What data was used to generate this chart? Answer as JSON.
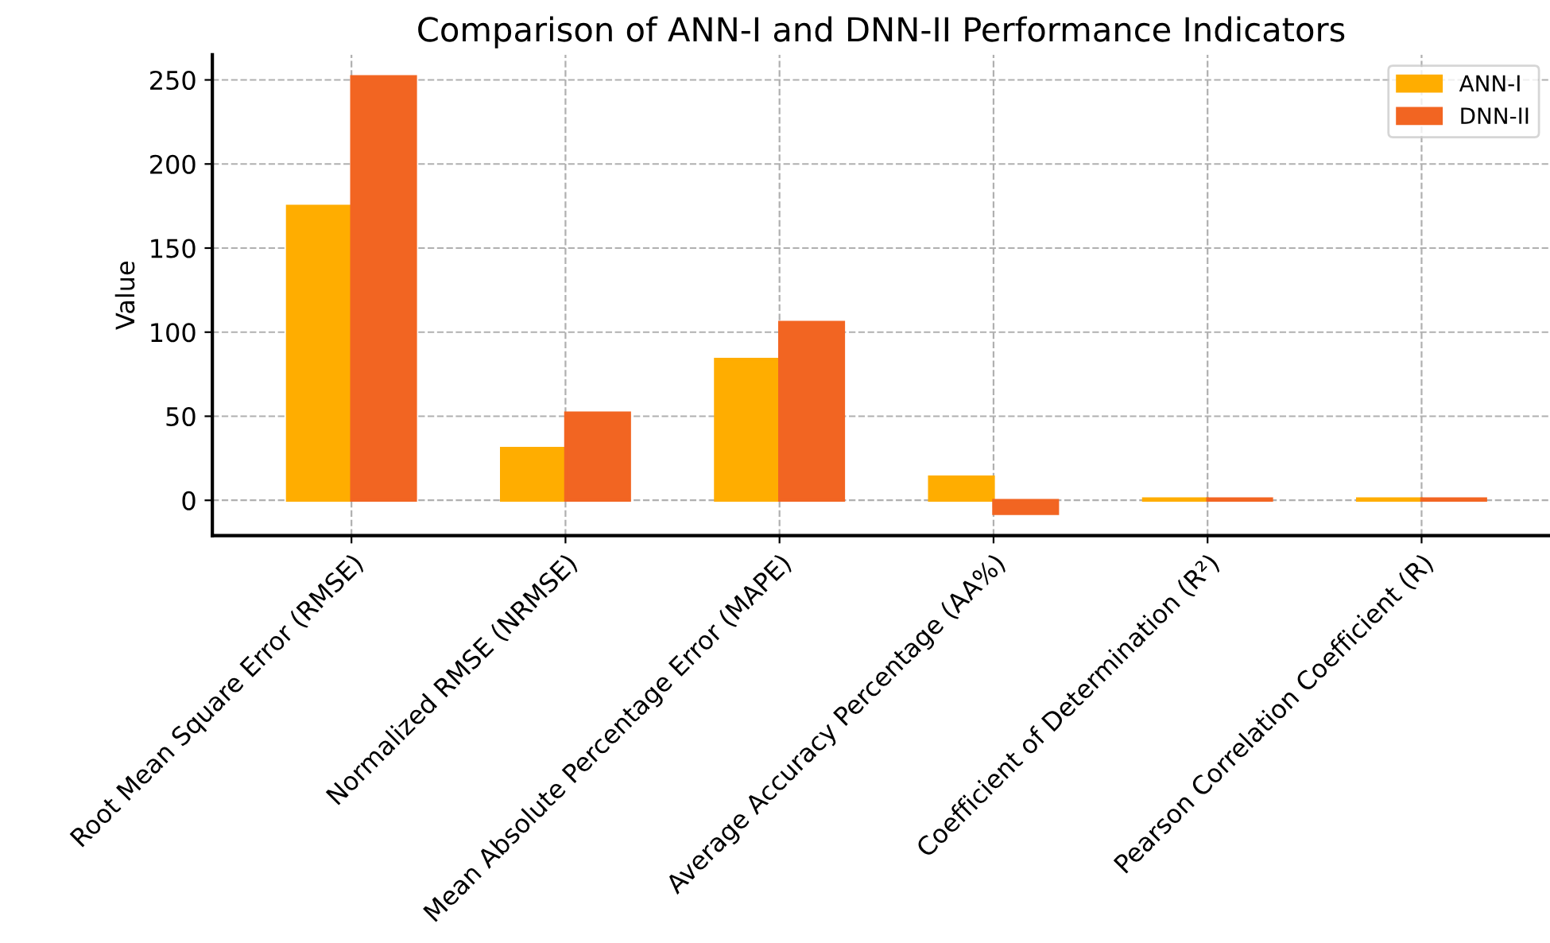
{
  "chart_data": {
    "type": "bar",
    "title": "Comparison of ANN-I and DNN-II Performance Indicators",
    "ylabel": "Value",
    "categories": [
      "Root Mean Square Error (RMSE)",
      "Normalized RMSE (NRMSE)",
      "Mean Absolute Percentage Error (MAPE)",
      "Average Accuracy Percentage (AA%)",
      "Coefficient of Determination (R²)",
      "Pearson Correlation Coefficient (R)"
    ],
    "series": [
      {
        "name": "ANN-I",
        "color": "#ffad00",
        "values": [
          175,
          31,
          84,
          14,
          1,
          1
        ]
      },
      {
        "name": "DNN-II",
        "color": "#f26522",
        "values": [
          252,
          52,
          106,
          -8,
          1,
          1
        ]
      }
    ],
    "ylim": [
      -21,
      265
    ],
    "yticks": [
      0,
      50,
      100,
      150,
      200,
      250
    ],
    "grid": true,
    "legend": "top right"
  }
}
